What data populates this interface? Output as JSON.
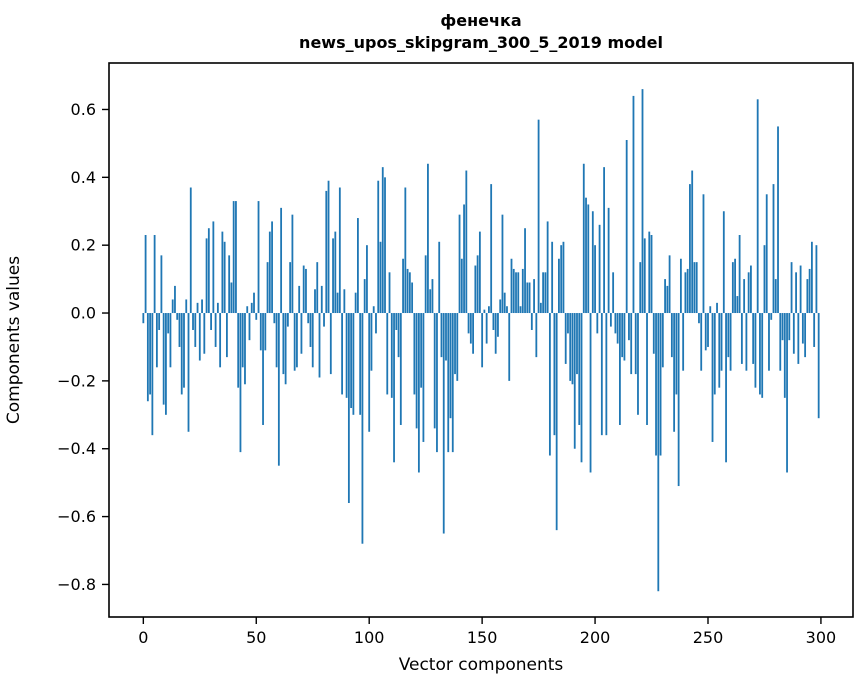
{
  "figure": {
    "title_line1": "фенечка",
    "title_line2": "news_upos_skipgram_300_5_2019 model",
    "bar_color": "#1f77b4",
    "axis_color": "#000000",
    "background_color": "#ffffff"
  },
  "chart_data": {
    "type": "bar",
    "title": "фенечка",
    "subtitle": "news_upos_skipgram_300_5_2019 model",
    "xlabel": "Vector components",
    "ylabel": "Components values",
    "x_tick_values": [
      0,
      50,
      100,
      150,
      200,
      250,
      300
    ],
    "y_tick_values": [
      0.6,
      0.4,
      0.2,
      0.0,
      -0.2,
      -0.4,
      -0.6,
      -0.8
    ],
    "xlim": [
      -15.2,
      314.2
    ],
    "ylim": [
      -0.896,
      0.737
    ],
    "grid": false,
    "legend": false,
    "bar_width": 0.8,
    "n_components": 300,
    "values": [
      -0.03,
      0.23,
      -0.26,
      -0.24,
      -0.36,
      0.23,
      -0.16,
      -0.05,
      0.17,
      -0.27,
      -0.3,
      -0.06,
      -0.16,
      0.04,
      0.08,
      -0.02,
      -0.1,
      -0.24,
      -0.22,
      0.04,
      -0.35,
      0.37,
      -0.05,
      -0.1,
      0.03,
      -0.14,
      0.04,
      -0.12,
      0.22,
      0.25,
      -0.05,
      0.27,
      -0.1,
      0.03,
      -0.16,
      0.24,
      0.21,
      -0.13,
      0.17,
      0.09,
      0.33,
      0.33,
      -0.22,
      -0.41,
      -0.16,
      -0.21,
      0.02,
      -0.08,
      0.03,
      0.06,
      -0.02,
      0.33,
      -0.11,
      -0.33,
      -0.11,
      0.15,
      0.24,
      0.27,
      -0.03,
      -0.16,
      -0.45,
      0.31,
      -0.18,
      -0.21,
      -0.04,
      0.15,
      0.29,
      -0.17,
      -0.16,
      0.08,
      -0.12,
      0.14,
      0.13,
      -0.03,
      -0.1,
      -0.16,
      0.07,
      0.15,
      -0.19,
      0.08,
      -0.04,
      0.36,
      0.39,
      -0.18,
      0.22,
      0.24,
      0.06,
      0.37,
      -0.24,
      0.07,
      -0.25,
      -0.56,
      -0.28,
      -0.3,
      0.06,
      0.28,
      -0.3,
      -0.68,
      0.1,
      0.2,
      -0.35,
      -0.17,
      0.02,
      -0.06,
      0.39,
      0.21,
      0.43,
      0.4,
      -0.24,
      0.12,
      -0.25,
      -0.44,
      -0.05,
      -0.13,
      -0.33,
      0.16,
      0.37,
      0.13,
      0.12,
      0.09,
      -0.24,
      -0.34,
      -0.47,
      -0.22,
      -0.38,
      0.17,
      0.44,
      0.07,
      0.1,
      -0.34,
      -0.41,
      0.21,
      -0.13,
      -0.65,
      -0.14,
      -0.41,
      -0.31,
      -0.41,
      -0.18,
      -0.2,
      0.29,
      0.16,
      0.32,
      0.42,
      -0.06,
      -0.09,
      -0.12,
      0.14,
      0.17,
      0.24,
      -0.16,
      0.01,
      -0.09,
      0.02,
      0.38,
      -0.05,
      -0.12,
      -0.07,
      0.04,
      0.29,
      0.06,
      0.02,
      -0.2,
      0.16,
      0.13,
      0.12,
      0.12,
      0.02,
      0.13,
      0.25,
      0.09,
      0.09,
      -0.05,
      0.1,
      -0.13,
      0.57,
      0.03,
      0.12,
      0.12,
      0.27,
      -0.42,
      0.21,
      -0.36,
      -0.64,
      0.16,
      0.2,
      0.21,
      -0.15,
      -0.06,
      -0.2,
      -0.21,
      -0.4,
      -0.18,
      -0.33,
      -0.44,
      0.44,
      0.34,
      0.32,
      -0.47,
      0.3,
      0.2,
      -0.06,
      0.26,
      -0.36,
      0.43,
      -0.36,
      0.31,
      -0.04,
      0.12,
      -0.06,
      -0.09,
      -0.33,
      -0.13,
      -0.14,
      0.51,
      -0.08,
      -0.18,
      0.64,
      -0.18,
      -0.3,
      0.15,
      0.66,
      0.22,
      -0.33,
      0.24,
      0.23,
      -0.12,
      -0.42,
      -0.82,
      -0.42,
      -0.16,
      0.1,
      0.08,
      0.17,
      -0.13,
      -0.35,
      -0.24,
      -0.51,
      0.16,
      -0.17,
      0.12,
      0.13,
      0.38,
      0.42,
      0.15,
      0.15,
      -0.03,
      -0.17,
      0.35,
      -0.11,
      -0.1,
      0.02,
      -0.38,
      -0.24,
      0.03,
      -0.22,
      -0.17,
      0.3,
      -0.44,
      -0.13,
      -0.17,
      0.15,
      0.16,
      0.05,
      0.23,
      -0.15,
      0.1,
      -0.17,
      0.12,
      0.14,
      -0.15,
      -0.22,
      0.63,
      -0.24,
      -0.25,
      0.2,
      0.35,
      -0.17,
      -0.02,
      0.38,
      0.1,
      0.55,
      -0.17,
      -0.08,
      -0.25,
      -0.47,
      -0.08,
      0.15,
      -0.12,
      0.12,
      -0.15,
      0.14,
      -0.09,
      -0.13,
      0.1,
      0.13,
      0.21,
      -0.1,
      0.2,
      -0.31
    ]
  }
}
